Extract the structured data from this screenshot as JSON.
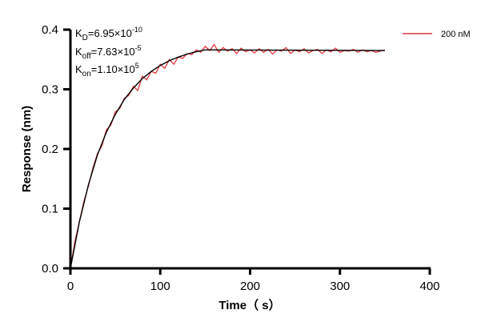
{
  "chart_data": {
    "type": "line",
    "xlabel": "Time（ s）",
    "ylabel": "Response (nm)",
    "xlim": [
      0,
      400
    ],
    "ylim": [
      0,
      0.4
    ],
    "xticks": [
      "0",
      "100",
      "200",
      "300",
      "400"
    ],
    "yticks": [
      "0.0",
      "0.1",
      "0.2",
      "0.3",
      "0.4"
    ],
    "grid": false,
    "legend_position": "top-right",
    "annotations": {
      "kd": {
        "label": "K",
        "sub": "D",
        "value": "=6.95×10",
        "exp": "-10"
      },
      "koff": {
        "label": "K",
        "sub": "off",
        "value": "=7.63×10",
        "exp": "-5"
      },
      "kon": {
        "label": "K",
        "sub": "on",
        "value": "=1.10×10",
        "exp": "5"
      }
    },
    "series": [
      {
        "name": "200 nM",
        "color": "#e0393e",
        "x": [
          0,
          5,
          10,
          15,
          20,
          25,
          30,
          35,
          40,
          45,
          50,
          55,
          60,
          65,
          70,
          75,
          80,
          85,
          90,
          95,
          100,
          105,
          110,
          115,
          120,
          125,
          130,
          135,
          140,
          145,
          150,
          155,
          160,
          165,
          170,
          175,
          180,
          185,
          190,
          195,
          200,
          205,
          210,
          215,
          220,
          225,
          230,
          235,
          240,
          245,
          250,
          255,
          260,
          265,
          270,
          275,
          280,
          285,
          290,
          295,
          300,
          305,
          310,
          315,
          320,
          325,
          330,
          335,
          340,
          345,
          350
        ],
        "y": [
          0,
          0.045,
          0.078,
          0.112,
          0.138,
          0.168,
          0.192,
          0.205,
          0.232,
          0.24,
          0.262,
          0.268,
          0.285,
          0.29,
          0.305,
          0.298,
          0.322,
          0.316,
          0.33,
          0.327,
          0.342,
          0.335,
          0.35,
          0.342,
          0.354,
          0.352,
          0.36,
          0.358,
          0.366,
          0.362,
          0.372,
          0.365,
          0.375,
          0.362,
          0.37,
          0.364,
          0.368,
          0.36,
          0.369,
          0.363,
          0.366,
          0.361,
          0.368,
          0.362,
          0.367,
          0.359,
          0.366,
          0.364,
          0.37,
          0.36,
          0.366,
          0.363,
          0.368,
          0.361,
          0.365,
          0.367,
          0.36,
          0.366,
          0.363,
          0.369,
          0.362,
          0.365,
          0.364,
          0.367,
          0.362,
          0.366,
          0.363,
          0.365,
          0.362,
          0.364,
          0.366
        ]
      },
      {
        "color": "#000000",
        "x": [
          0,
          10,
          20,
          30,
          40,
          50,
          60,
          70,
          80,
          90,
          100,
          110,
          120,
          130,
          140,
          150,
          160,
          350
        ],
        "y": [
          0,
          0.078,
          0.14,
          0.19,
          0.228,
          0.258,
          0.283,
          0.302,
          0.318,
          0.33,
          0.34,
          0.348,
          0.354,
          0.359,
          0.363,
          0.366,
          0.366,
          0.365
        ]
      }
    ]
  }
}
